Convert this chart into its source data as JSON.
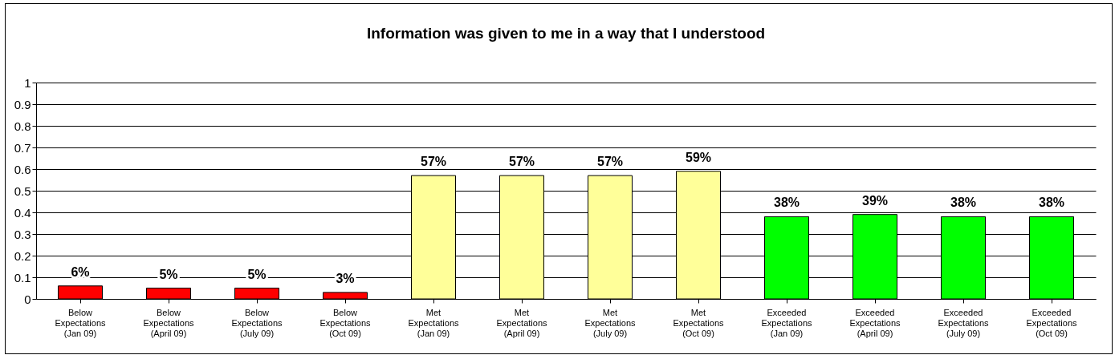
{
  "chart_data": {
    "type": "bar",
    "title": "Information was given to me in a way that I understood",
    "categories": [
      "Below\nExpectations\n(Jan 09)",
      "Below\nExpectations\n(April 09)",
      "Below\nExpectations\n(July 09)",
      "Below\nExpectations\n(Oct 09)",
      "Met\nExpectations\n(Jan 09)",
      "Met\nExpectations\n(April 09)",
      "Met\nExpectations\n(July 09)",
      "Met\nExpectations\n(Oct 09)",
      "Exceeded\nExpectations\n(Jan 09)",
      "Exceeded\nExpectations\n(April 09)",
      "Exceeded\nExpectations\n(July 09)",
      "Exceeded\nExpectations\n(Oct 09)"
    ],
    "values": [
      0.06,
      0.05,
      0.05,
      0.03,
      0.57,
      0.57,
      0.57,
      0.59,
      0.38,
      0.39,
      0.38,
      0.38
    ],
    "value_labels": [
      "6%",
      "5%",
      "5%",
      "3%",
      "57%",
      "57%",
      "57%",
      "59%",
      "38%",
      "39%",
      "38%",
      "38%"
    ],
    "colors": [
      "#ff0000",
      "#ff0000",
      "#ff0000",
      "#ff0000",
      "#ffff99",
      "#ffff99",
      "#ffff99",
      "#ffff99",
      "#00ff00",
      "#00ff00",
      "#00ff00",
      "#00ff00"
    ],
    "ylim": [
      0,
      1
    ],
    "yticks": [
      0,
      0.1,
      0.2,
      0.3,
      0.4,
      0.5,
      0.6,
      0.7,
      0.8,
      0.9,
      1
    ],
    "grid": "y"
  }
}
